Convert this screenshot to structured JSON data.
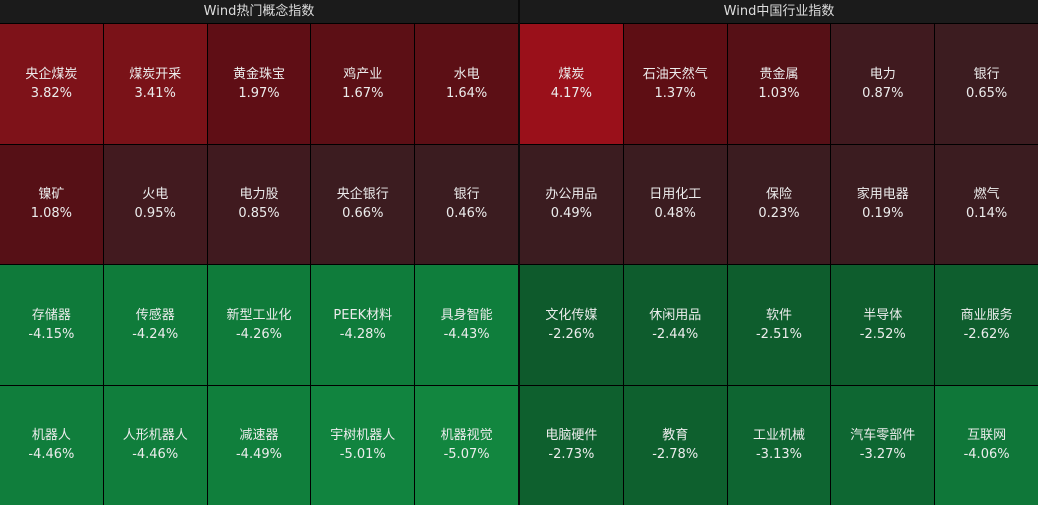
{
  "panels": [
    {
      "title": "Wind热门概念指数",
      "tiles": [
        {
          "name": "央企煤炭",
          "change": "3.82%",
          "color": "#7e1219"
        },
        {
          "name": "煤炭开采",
          "change": "3.41%",
          "color": "#7a1218"
        },
        {
          "name": "黄金珠宝",
          "change": "1.97%",
          "color": "#5f0e15"
        },
        {
          "name": "鸡产业",
          "change": "1.67%",
          "color": "#5c0f15"
        },
        {
          "name": "水电",
          "change": "1.64%",
          "color": "#5c0f15"
        },
        {
          "name": "镍矿",
          "change": "1.08%",
          "color": "#561016"
        },
        {
          "name": "火电",
          "change": "0.95%",
          "color": "#421a1f"
        },
        {
          "name": "电力股",
          "change": "0.85%",
          "color": "#401a1f"
        },
        {
          "name": "央企银行",
          "change": "0.66%",
          "color": "#3c1c20"
        },
        {
          "name": "银行",
          "change": "0.46%",
          "color": "#3b1c20"
        },
        {
          "name": "存储器",
          "change": "-4.15%",
          "color": "#0f7a3a"
        },
        {
          "name": "传感器",
          "change": "-4.24%",
          "color": "#0f7b3a"
        },
        {
          "name": "新型工业化",
          "change": "-4.26%",
          "color": "#0f7b3a"
        },
        {
          "name": "PEEK材料",
          "change": "-4.28%",
          "color": "#0f7c3b"
        },
        {
          "name": "具身智能",
          "change": "-4.43%",
          "color": "#0f7e3c"
        },
        {
          "name": "机器人",
          "change": "-4.46%",
          "color": "#107e3c"
        },
        {
          "name": "人形机器人",
          "change": "-4.46%",
          "color": "#107e3c"
        },
        {
          "name": "减速器",
          "change": "-4.49%",
          "color": "#107f3c"
        },
        {
          "name": "宇树机器人",
          "change": "-5.01%",
          "color": "#11843f"
        },
        {
          "name": "机器视觉",
          "change": "-5.07%",
          "color": "#12863f"
        }
      ]
    },
    {
      "title": "Wind中国行业指数",
      "tiles": [
        {
          "name": "煤炭",
          "change": "4.17%",
          "color": "#9a101a"
        },
        {
          "name": "石油天然气",
          "change": "1.37%",
          "color": "#5e0e14"
        },
        {
          "name": "贵金属",
          "change": "1.03%",
          "color": "#561016"
        },
        {
          "name": "电力",
          "change": "0.87%",
          "color": "#401a1f"
        },
        {
          "name": "银行",
          "change": "0.65%",
          "color": "#3c1c20"
        },
        {
          "name": "办公用品",
          "change": "0.49%",
          "color": "#3b1c20"
        },
        {
          "name": "日用化工",
          "change": "0.48%",
          "color": "#3b1c20"
        },
        {
          "name": "保险",
          "change": "0.23%",
          "color": "#3b1c20"
        },
        {
          "name": "家用电器",
          "change": "0.19%",
          "color": "#3b1c20"
        },
        {
          "name": "燃气",
          "change": "0.14%",
          "color": "#3b1c20"
        },
        {
          "name": "文化传媒",
          "change": "-2.26%",
          "color": "#0e5a2c"
        },
        {
          "name": "休闲用品",
          "change": "-2.44%",
          "color": "#0e5c2d"
        },
        {
          "name": "软件",
          "change": "-2.51%",
          "color": "#0e5d2d"
        },
        {
          "name": "半导体",
          "change": "-2.52%",
          "color": "#0e5d2d"
        },
        {
          "name": "商业服务",
          "change": "-2.62%",
          "color": "#0e5e2e"
        },
        {
          "name": "电脑硬件",
          "change": "-2.73%",
          "color": "#0e602e"
        },
        {
          "name": "教育",
          "change": "-2.78%",
          "color": "#0e602e"
        },
        {
          "name": "工业机械",
          "change": "-3.13%",
          "color": "#0e6531"
        },
        {
          "name": "汽车零部件",
          "change": "-3.27%",
          "color": "#0e6732"
        },
        {
          "name": "互联网",
          "change": "-4.06%",
          "color": "#0f7739"
        }
      ]
    }
  ]
}
